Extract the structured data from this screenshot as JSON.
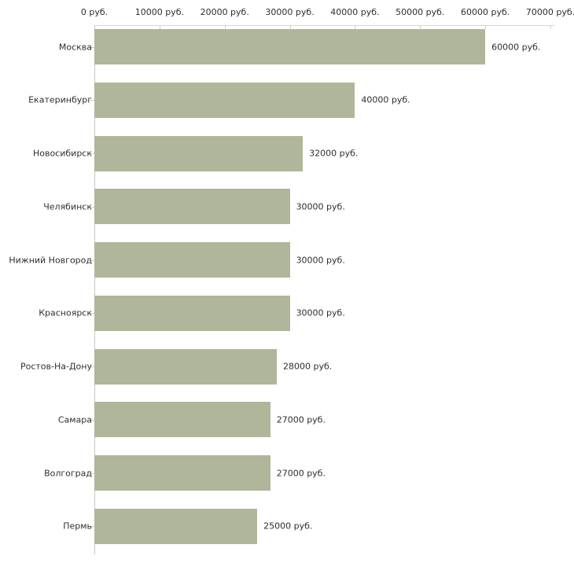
{
  "chart_data": {
    "type": "bar",
    "orientation": "horizontal",
    "title": "",
    "xlabel": "",
    "ylabel": "",
    "unit": "руб.",
    "categories": [
      "Москва",
      "Екатеринбург",
      "Новосибирск",
      "Челябинск",
      "Нижний Новгород",
      "Красноярск",
      "Ростов-На-Дону",
      "Самара",
      "Волгоград",
      "Пермь"
    ],
    "values": [
      60000,
      40000,
      32000,
      30000,
      30000,
      30000,
      28000,
      27000,
      27000,
      25000
    ],
    "value_labels": [
      "60000 руб.",
      "40000 руб.",
      "32000 руб.",
      "30000 руб.",
      "30000 руб.",
      "30000 руб.",
      "28000 руб.",
      "27000 руб.",
      "27000 руб.",
      "25000 руб."
    ],
    "x_tick_values": [
      0,
      10000,
      20000,
      30000,
      40000,
      50000,
      60000,
      70000
    ],
    "x_tick_labels": [
      "0 руб.",
      "10000 руб.",
      "20000 руб.",
      "30000 руб.",
      "40000 руб.",
      "50000 руб.",
      "60000 руб.",
      "70000 руб."
    ],
    "xlim": [
      0,
      70000
    ],
    "grid": false,
    "legend": false,
    "colors": {
      "bar": "#b0b69a",
      "axis_line": "#d6d6c6",
      "tick": "#cfcfc0",
      "y_axis": "#c6c6c6",
      "text": "#2e2e2e"
    }
  }
}
